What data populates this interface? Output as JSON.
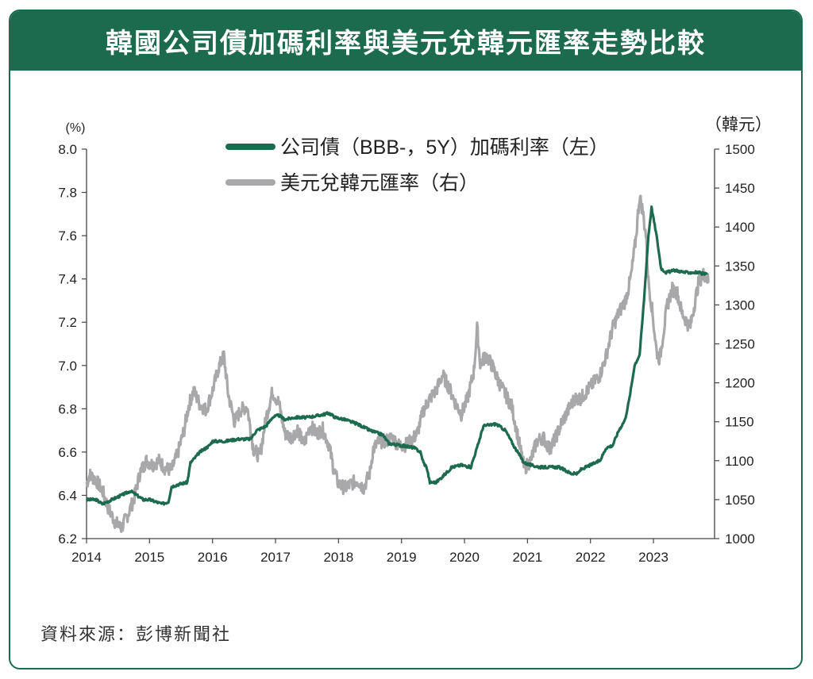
{
  "title": "韓國公司債加碼利率與美元兌韓元匯率走勢比較",
  "source": "資料來源：彭博新聞社",
  "colors": {
    "bond": "#1d6b4f",
    "fx": "#a8a8ab",
    "frame": "#1d6b4f"
  },
  "chart_data": {
    "type": "line",
    "left_unit": "(%)",
    "right_unit": "（韓元）",
    "x_ticks": [
      "2014",
      "2015",
      "2016",
      "2017",
      "2018",
      "2019",
      "2020",
      "2021",
      "2022",
      "2023"
    ],
    "y_left_ticks": [
      "6.2",
      "6.4",
      "6.6",
      "6.8",
      "7.0",
      "7.2",
      "7.4",
      "7.6",
      "7.8",
      "8.0"
    ],
    "y_right_ticks": [
      "1000",
      "1050",
      "1100",
      "1150",
      "1200",
      "1250",
      "1300",
      "1350",
      "1400",
      "1450",
      "1500"
    ],
    "y_left_range": [
      6.2,
      8.0
    ],
    "y_right_range": [
      1000,
      1500
    ],
    "x_range": [
      2014,
      2023.97
    ],
    "series": [
      {
        "name": "公司債（BBB-，5Y）加碼利率（左）",
        "axis": "left",
        "points": [
          [
            2014.0,
            6.38
          ],
          [
            2014.15,
            6.38
          ],
          [
            2014.25,
            6.36
          ],
          [
            2014.4,
            6.38
          ],
          [
            2014.55,
            6.4
          ],
          [
            2014.7,
            6.42
          ],
          [
            2014.8,
            6.4
          ],
          [
            2014.9,
            6.38
          ],
          [
            2015.0,
            6.38
          ],
          [
            2015.1,
            6.37
          ],
          [
            2015.2,
            6.36
          ],
          [
            2015.3,
            6.37
          ],
          [
            2015.35,
            6.44
          ],
          [
            2015.45,
            6.45
          ],
          [
            2015.6,
            6.46
          ],
          [
            2015.65,
            6.55
          ],
          [
            2015.8,
            6.6
          ],
          [
            2015.95,
            6.63
          ],
          [
            2016.0,
            6.65
          ],
          [
            2016.2,
            6.65
          ],
          [
            2016.4,
            6.66
          ],
          [
            2016.6,
            6.66
          ],
          [
            2016.7,
            6.7
          ],
          [
            2016.85,
            6.72
          ],
          [
            2016.95,
            6.76
          ],
          [
            2017.05,
            6.77
          ],
          [
            2017.15,
            6.75
          ],
          [
            2017.3,
            6.76
          ],
          [
            2017.5,
            6.76
          ],
          [
            2017.7,
            6.77
          ],
          [
            2017.85,
            6.78
          ],
          [
            2017.95,
            6.76
          ],
          [
            2018.1,
            6.75
          ],
          [
            2018.3,
            6.73
          ],
          [
            2018.5,
            6.7
          ],
          [
            2018.7,
            6.68
          ],
          [
            2018.8,
            6.64
          ],
          [
            2019.0,
            6.63
          ],
          [
            2019.2,
            6.62
          ],
          [
            2019.3,
            6.6
          ],
          [
            2019.35,
            6.55
          ],
          [
            2019.4,
            6.53
          ],
          [
            2019.45,
            6.46
          ],
          [
            2019.55,
            6.46
          ],
          [
            2019.7,
            6.5
          ],
          [
            2019.8,
            6.53
          ],
          [
            2019.95,
            6.54
          ],
          [
            2020.1,
            6.53
          ],
          [
            2020.2,
            6.62
          ],
          [
            2020.3,
            6.72
          ],
          [
            2020.5,
            6.73
          ],
          [
            2020.65,
            6.7
          ],
          [
            2020.8,
            6.62
          ],
          [
            2020.95,
            6.55
          ],
          [
            2021.05,
            6.54
          ],
          [
            2021.2,
            6.53
          ],
          [
            2021.5,
            6.53
          ],
          [
            2021.7,
            6.5
          ],
          [
            2021.8,
            6.5
          ],
          [
            2021.85,
            6.52
          ],
          [
            2022.0,
            6.54
          ],
          [
            2022.15,
            6.56
          ],
          [
            2022.25,
            6.62
          ],
          [
            2022.35,
            6.63
          ],
          [
            2022.45,
            6.7
          ],
          [
            2022.55,
            6.75
          ],
          [
            2022.62,
            6.85
          ],
          [
            2022.7,
            7.0
          ],
          [
            2022.78,
            7.05
          ],
          [
            2022.85,
            7.3
          ],
          [
            2022.92,
            7.6
          ],
          [
            2022.97,
            7.73
          ],
          [
            2023.05,
            7.6
          ],
          [
            2023.12,
            7.45
          ],
          [
            2023.2,
            7.43
          ],
          [
            2023.35,
            7.44
          ],
          [
            2023.5,
            7.43
          ],
          [
            2023.7,
            7.43
          ],
          [
            2023.85,
            7.42
          ]
        ]
      },
      {
        "name": "美元兌韓元匯率（右）",
        "axis": "right",
        "points": [
          [
            2014.0,
            1070
          ],
          [
            2014.05,
            1082
          ],
          [
            2014.15,
            1075
          ],
          [
            2014.25,
            1062
          ],
          [
            2014.35,
            1038
          ],
          [
            2014.45,
            1022
          ],
          [
            2014.55,
            1013
          ],
          [
            2014.65,
            1030
          ],
          [
            2014.75,
            1050
          ],
          [
            2014.85,
            1085
          ],
          [
            2014.95,
            1100
          ],
          [
            2015.05,
            1095
          ],
          [
            2015.15,
            1100
          ],
          [
            2015.25,
            1090
          ],
          [
            2015.35,
            1088
          ],
          [
            2015.45,
            1110
          ],
          [
            2015.55,
            1140
          ],
          [
            2015.62,
            1170
          ],
          [
            2015.7,
            1190
          ],
          [
            2015.8,
            1172
          ],
          [
            2015.9,
            1165
          ],
          [
            2016.0,
            1190
          ],
          [
            2016.1,
            1220
          ],
          [
            2016.18,
            1235
          ],
          [
            2016.25,
            1185
          ],
          [
            2016.35,
            1150
          ],
          [
            2016.45,
            1165
          ],
          [
            2016.55,
            1170
          ],
          [
            2016.65,
            1115
          ],
          [
            2016.75,
            1105
          ],
          [
            2016.85,
            1155
          ],
          [
            2016.95,
            1188
          ],
          [
            2017.05,
            1175
          ],
          [
            2017.15,
            1135
          ],
          [
            2017.25,
            1130
          ],
          [
            2017.35,
            1140
          ],
          [
            2017.45,
            1120
          ],
          [
            2017.55,
            1145
          ],
          [
            2017.65,
            1135
          ],
          [
            2017.75,
            1140
          ],
          [
            2017.85,
            1120
          ],
          [
            2017.92,
            1090
          ],
          [
            2018.0,
            1070
          ],
          [
            2018.1,
            1065
          ],
          [
            2018.2,
            1070
          ],
          [
            2018.3,
            1075
          ],
          [
            2018.4,
            1065
          ],
          [
            2018.5,
            1085
          ],
          [
            2018.55,
            1115
          ],
          [
            2018.65,
            1125
          ],
          [
            2018.75,
            1125
          ],
          [
            2018.85,
            1130
          ],
          [
            2018.95,
            1120
          ],
          [
            2019.05,
            1120
          ],
          [
            2019.15,
            1125
          ],
          [
            2019.25,
            1135
          ],
          [
            2019.35,
            1165
          ],
          [
            2019.45,
            1180
          ],
          [
            2019.55,
            1190
          ],
          [
            2019.65,
            1210
          ],
          [
            2019.75,
            1195
          ],
          [
            2019.85,
            1175
          ],
          [
            2019.95,
            1160
          ],
          [
            2020.05,
            1180
          ],
          [
            2020.15,
            1215
          ],
          [
            2020.2,
            1270
          ],
          [
            2020.25,
            1225
          ],
          [
            2020.35,
            1235
          ],
          [
            2020.45,
            1220
          ],
          [
            2020.55,
            1200
          ],
          [
            2020.65,
            1185
          ],
          [
            2020.75,
            1170
          ],
          [
            2020.85,
            1130
          ],
          [
            2020.95,
            1090
          ],
          [
            2021.05,
            1100
          ],
          [
            2021.15,
            1125
          ],
          [
            2021.25,
            1130
          ],
          [
            2021.35,
            1115
          ],
          [
            2021.45,
            1130
          ],
          [
            2021.55,
            1150
          ],
          [
            2021.65,
            1165
          ],
          [
            2021.75,
            1180
          ],
          [
            2021.85,
            1180
          ],
          [
            2021.95,
            1190
          ],
          [
            2022.05,
            1200
          ],
          [
            2022.15,
            1210
          ],
          [
            2022.25,
            1235
          ],
          [
            2022.35,
            1270
          ],
          [
            2022.45,
            1290
          ],
          [
            2022.55,
            1305
          ],
          [
            2022.6,
            1320
          ],
          [
            2022.65,
            1340
          ],
          [
            2022.72,
            1385
          ],
          [
            2022.78,
            1440
          ],
          [
            2022.83,
            1420
          ],
          [
            2022.88,
            1390
          ],
          [
            2022.92,
            1330
          ],
          [
            2022.97,
            1300
          ],
          [
            2023.05,
            1240
          ],
          [
            2023.1,
            1230
          ],
          [
            2023.15,
            1260
          ],
          [
            2023.22,
            1300
          ],
          [
            2023.3,
            1320
          ],
          [
            2023.38,
            1315
          ],
          [
            2023.45,
            1290
          ],
          [
            2023.52,
            1280
          ],
          [
            2023.58,
            1270
          ],
          [
            2023.65,
            1300
          ],
          [
            2023.72,
            1330
          ],
          [
            2023.8,
            1340
          ],
          [
            2023.88,
            1330
          ]
        ]
      }
    ]
  }
}
